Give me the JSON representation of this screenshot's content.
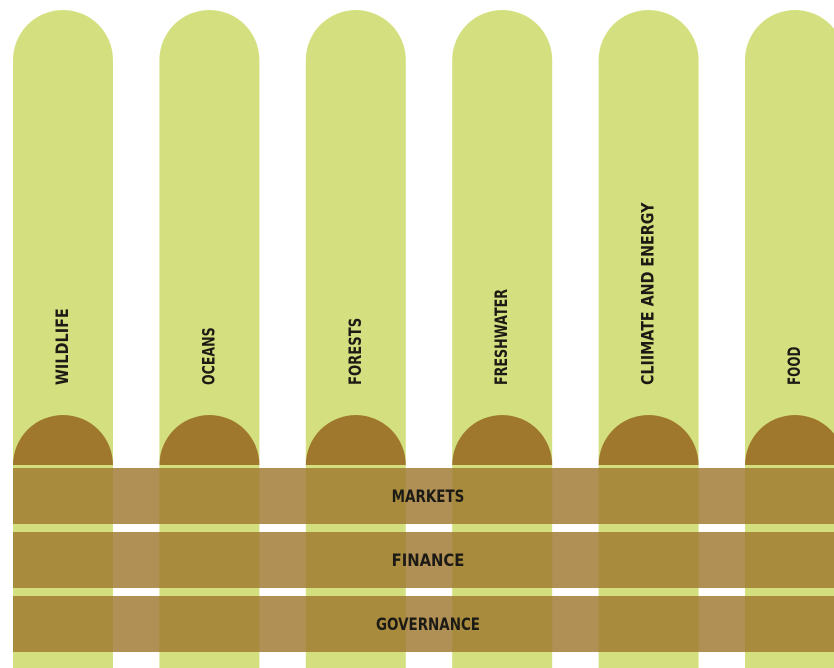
{
  "pillars": [
    "WILDLIFE",
    "OCEANS",
    "FORESTS",
    "FRESHWATER",
    "CLIIMATE AND ENERGY",
    "FOOD"
  ],
  "foundations": [
    "MARKETS",
    "FINANCE",
    "GOVERNANCE"
  ]
}
